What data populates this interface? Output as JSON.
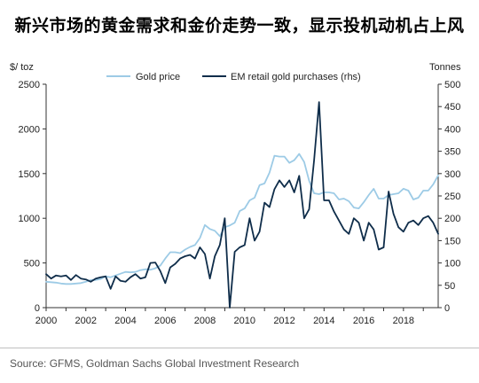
{
  "page": {
    "headline": "新兴市场的黄金需求和金价走势一致，显示投机动机占上风",
    "source": "Source: GFMS, Goldman Sachs Global Investment Research"
  },
  "colors": {
    "gold_price": "#9dcbe6",
    "em_purchases": "#0f2d4a",
    "axis": "#333333"
  },
  "chart_data": {
    "type": "line",
    "left_unit": "$/ toz",
    "right_unit": "Tonnes",
    "ylim_left": [
      0,
      2500
    ],
    "ylim_right": [
      0,
      500
    ],
    "xlim": [
      2000,
      2019.75
    ],
    "left_ticks": [
      "0",
      "500",
      "1000",
      "1500",
      "2000",
      "2500"
    ],
    "right_ticks": [
      "0",
      "50",
      "100",
      "150",
      "200",
      "250",
      "300",
      "350",
      "400",
      "450",
      "500"
    ],
    "x_ticks": [
      "2000",
      "2002",
      "2004",
      "2006",
      "2008",
      "2010",
      "2012",
      "2014",
      "2016",
      "2018"
    ],
    "grid": false,
    "legend_position": "top",
    "series": [
      {
        "name": "Gold price",
        "axis": "left",
        "color": "#9dcbe6",
        "x": [
          2000,
          2000.25,
          2000.5,
          2000.75,
          2001,
          2001.25,
          2001.5,
          2001.75,
          2002,
          2002.25,
          2002.5,
          2002.75,
          2003,
          2003.25,
          2003.5,
          2003.75,
          2004,
          2004.25,
          2004.5,
          2004.75,
          2005,
          2005.25,
          2005.5,
          2005.75,
          2006,
          2006.25,
          2006.5,
          2006.75,
          2007,
          2007.25,
          2007.5,
          2007.75,
          2008,
          2008.25,
          2008.5,
          2008.75,
          2009,
          2009.25,
          2009.5,
          2009.75,
          2010,
          2010.25,
          2010.5,
          2010.75,
          2011,
          2011.25,
          2011.5,
          2011.75,
          2012,
          2012.25,
          2012.5,
          2012.75,
          2013,
          2013.25,
          2013.5,
          2013.75,
          2014,
          2014.25,
          2014.5,
          2014.75,
          2015,
          2015.25,
          2015.5,
          2015.75,
          2016,
          2016.25,
          2016.5,
          2016.75,
          2017,
          2017.25,
          2017.5,
          2017.75,
          2018,
          2018.25,
          2018.5,
          2018.75,
          2019,
          2019.25,
          2019.5,
          2019.75
        ],
        "values": [
          290,
          285,
          280,
          270,
          265,
          265,
          270,
          275,
          290,
          310,
          310,
          320,
          350,
          340,
          360,
          380,
          400,
          395,
          400,
          420,
          430,
          425,
          440,
          470,
          550,
          620,
          620,
          610,
          650,
          680,
          700,
          780,
          925,
          880,
          860,
          800,
          900,
          920,
          950,
          1080,
          1110,
          1200,
          1230,
          1370,
          1390,
          1510,
          1700,
          1690,
          1690,
          1620,
          1650,
          1720,
          1630,
          1420,
          1280,
          1270,
          1290,
          1290,
          1280,
          1210,
          1220,
          1190,
          1120,
          1110,
          1180,
          1260,
          1330,
          1220,
          1220,
          1260,
          1270,
          1280,
          1330,
          1310,
          1210,
          1230,
          1310,
          1310,
          1380,
          1480
        ]
      },
      {
        "name": "EM retail gold purchases (rhs)",
        "axis": "right",
        "color": "#0f2d4a",
        "x": [
          2000,
          2000.25,
          2000.5,
          2000.75,
          2001,
          2001.25,
          2001.5,
          2001.75,
          2002,
          2002.25,
          2002.5,
          2002.75,
          2003,
          2003.25,
          2003.5,
          2003.75,
          2004,
          2004.25,
          2004.5,
          2004.75,
          2005,
          2005.25,
          2005.5,
          2005.75,
          2006,
          2006.25,
          2006.5,
          2006.75,
          2007,
          2007.25,
          2007.5,
          2007.75,
          2008,
          2008.25,
          2008.5,
          2008.75,
          2009,
          2009.25,
          2009.5,
          2009.75,
          2010,
          2010.25,
          2010.5,
          2010.75,
          2011,
          2011.25,
          2011.5,
          2011.75,
          2012,
          2012.25,
          2012.5,
          2012.75,
          2013,
          2013.25,
          2013.5,
          2013.75,
          2014,
          2014.25,
          2014.5,
          2014.75,
          2015,
          2015.25,
          2015.5,
          2015.75,
          2016,
          2016.25,
          2016.5,
          2016.75,
          2017,
          2017.25,
          2017.5,
          2017.75,
          2018,
          2018.25,
          2018.5,
          2018.75,
          2019,
          2019.25,
          2019.5,
          2019.75
        ],
        "values": [
          75,
          65,
          72,
          70,
          72,
          62,
          73,
          65,
          63,
          58,
          65,
          68,
          70,
          42,
          70,
          60,
          58,
          68,
          75,
          65,
          68,
          100,
          101,
          82,
          55,
          90,
          98,
          110,
          115,
          118,
          110,
          135,
          120,
          65,
          115,
          140,
          200,
          0,
          125,
          135,
          140,
          200,
          150,
          170,
          235,
          225,
          265,
          285,
          270,
          285,
          258,
          295,
          200,
          220,
          330,
          460,
          240,
          240,
          215,
          195,
          175,
          165,
          200,
          190,
          150,
          190,
          175,
          130,
          135,
          260,
          210,
          180,
          170,
          190,
          195,
          185,
          200,
          205,
          190,
          165
        ]
      }
    ]
  }
}
